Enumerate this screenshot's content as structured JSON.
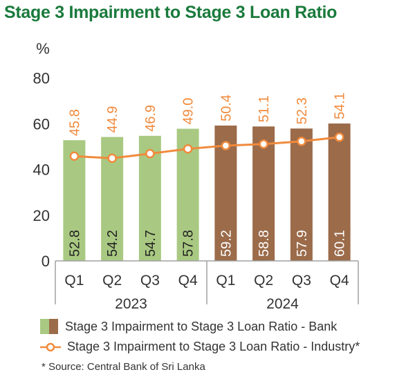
{
  "chart_data": {
    "type": "bar",
    "title": "Stage 3 Impairment to Stage 3 Loan Ratio",
    "ylabel": "%",
    "ylim": [
      0,
      80
    ],
    "yticks": [
      "0",
      "20",
      "40",
      "60",
      "80"
    ],
    "categories": [
      "Q1",
      "Q2",
      "Q3",
      "Q4",
      "Q1",
      "Q2",
      "Q3",
      "Q4"
    ],
    "groups": [
      {
        "label": "2023",
        "categories": [
          "Q1",
          "Q2",
          "Q3",
          "Q4"
        ]
      },
      {
        "label": "2024",
        "categories": [
          "Q1",
          "Q2",
          "Q3",
          "Q4"
        ]
      }
    ],
    "series": [
      {
        "name": "Stage 3 Impairment to Stage 3 Loan Ratio - Bank",
        "type": "bar",
        "values": [
          52.8,
          54.2,
          54.7,
          57.8,
          59.2,
          58.8,
          57.9,
          60.1
        ],
        "labels": [
          "52.8",
          "54.2",
          "54.7",
          "57.8",
          "59.2",
          "58.8",
          "57.9",
          "60.1"
        ]
      },
      {
        "name": "Stage 3 Impairment to Stage 3 Loan Ratio - Industry*",
        "type": "line",
        "values": [
          45.8,
          44.9,
          46.9,
          49.0,
          50.4,
          51.1,
          52.3,
          54.1
        ],
        "labels": [
          "45.8",
          "44.9",
          "46.9",
          "49.0",
          "50.4",
          "51.1",
          "52.3",
          "54.1"
        ]
      }
    ],
    "grid": false,
    "legend_position": "bottom",
    "colors": {
      "bar_2023": "#a9c982",
      "bar_2024": "#9b6b4a",
      "line": "#f08a3c",
      "title": "#1a7a3c",
      "axis": "#a0a0a0"
    }
  },
  "legend": {
    "bank": "Stage 3 Impairment to Stage 3 Loan Ratio - Bank",
    "industry": "Stage 3 Impairment to Stage 3 Loan Ratio - Industry*"
  },
  "source_note": "* Source: Central Bank of Sri Lanka"
}
